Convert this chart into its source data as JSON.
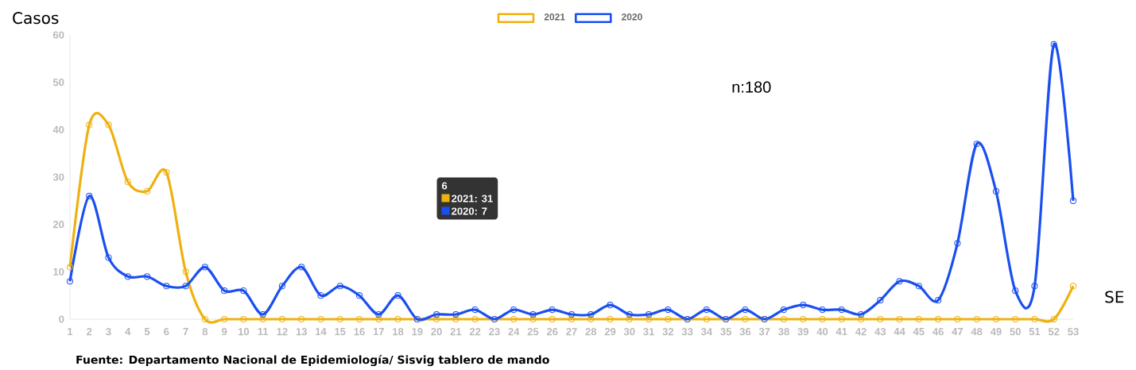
{
  "chart_data": {
    "type": "line",
    "xlabel": "SE",
    "ylabel": "Casos",
    "categories": [
      "1",
      "2",
      "3",
      "4",
      "5",
      "6",
      "7",
      "8",
      "9",
      "10",
      "11",
      "12",
      "13",
      "14",
      "15",
      "16",
      "17",
      "18",
      "19",
      "20",
      "21",
      "22",
      "23",
      "24",
      "25",
      "26",
      "27",
      "28",
      "29",
      "30",
      "31",
      "32",
      "33",
      "34",
      "35",
      "36",
      "37",
      "38",
      "39",
      "40",
      "41",
      "42",
      "43",
      "44",
      "45",
      "46",
      "47",
      "48",
      "49",
      "50",
      "51",
      "52",
      "53"
    ],
    "series": [
      {
        "name": "2021",
        "color": "#efb110",
        "values": [
          11,
          41,
          41,
          29,
          27,
          31,
          10,
          0,
          0,
          0,
          0,
          0,
          0,
          0,
          0,
          0,
          0,
          0,
          0,
          0,
          0,
          0,
          0,
          0,
          0,
          0,
          0,
          0,
          0,
          0,
          0,
          0,
          0,
          0,
          0,
          0,
          0,
          0,
          0,
          0,
          0,
          0,
          0,
          0,
          0,
          0,
          0,
          0,
          0,
          0,
          0,
          0,
          7
        ]
      },
      {
        "name": "2020",
        "color": "#1a4ff0",
        "values": [
          8,
          26,
          13,
          9,
          9,
          7,
          7,
          11,
          6,
          6,
          1,
          7,
          11,
          5,
          7,
          5,
          1,
          5,
          0,
          1,
          1,
          2,
          0,
          2,
          1,
          2,
          1,
          1,
          3,
          1,
          1,
          2,
          0,
          2,
          0,
          2,
          0,
          2,
          3,
          2,
          2,
          1,
          4,
          8,
          7,
          4,
          16,
          37,
          27,
          6,
          7,
          58,
          25
        ]
      }
    ],
    "ylim": [
      0,
      60
    ],
    "yticks": [
      0,
      10,
      20,
      30,
      40,
      50,
      60
    ],
    "legend": "top",
    "marker": "circle",
    "line_style": "solid",
    "annotations": [
      "n:180",
      "Fuente: Departamento Nacional de Epidemiología/ Sisvig tablero de mando",
      "6",
      "2021: 31",
      "2020: 7"
    ]
  }
}
